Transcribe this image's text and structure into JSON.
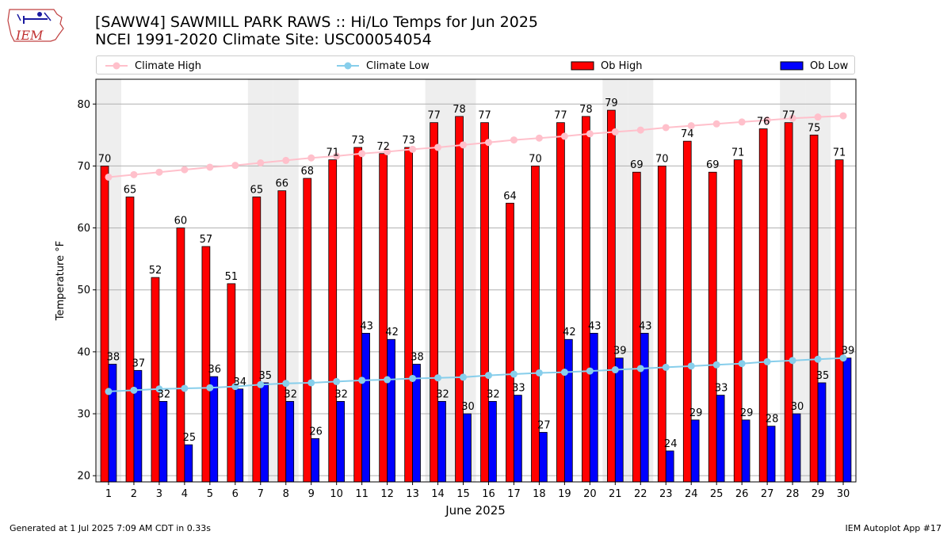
{
  "header": {
    "title_line1": "[SAWW4] SAWMILL PARK RAWS :: Hi/Lo Temps for Jun 2025",
    "title_line2": "NCEI 1991-2020 Climate Site: USC00054054",
    "logo_text": "IEM",
    "logo_icon": "iowa-weather-station-logo"
  },
  "legend": {
    "climate_high": "Climate High",
    "climate_low": "Climate Low",
    "ob_high": "Ob High",
    "ob_low": "Ob Low"
  },
  "footer": {
    "generated": "Generated at 1 Jul 2025 7:09 AM CDT in 0.33s",
    "app": "IEM Autoplot App #17"
  },
  "colors": {
    "ob_high": "#ff0000",
    "ob_low": "#0000ff",
    "climate_high": "#ffc0cb",
    "climate_low": "#87ceeb",
    "weekend_band": "#eeeeee",
    "grid": "#b0b0b0"
  },
  "chart_data": {
    "type": "bar",
    "xlabel": "June 2025",
    "ylabel": "Temperature °F",
    "ylim": [
      19,
      84
    ],
    "yticks": [
      20,
      30,
      40,
      50,
      60,
      70,
      80
    ],
    "grid": "horizontal",
    "legend_position": "top",
    "categories": [
      "1",
      "2",
      "3",
      "4",
      "5",
      "6",
      "7",
      "8",
      "9",
      "10",
      "11",
      "12",
      "13",
      "14",
      "15",
      "16",
      "17",
      "18",
      "19",
      "20",
      "21",
      "22",
      "23",
      "24",
      "25",
      "26",
      "27",
      "28",
      "29",
      "30"
    ],
    "shaded_days": [
      1,
      7,
      8,
      14,
      15,
      21,
      22,
      28,
      29
    ],
    "series": [
      {
        "name": "Ob High",
        "kind": "bar",
        "values": [
          70,
          65,
          52,
          60,
          57,
          51,
          65,
          66,
          68,
          71,
          73,
          72,
          73,
          77,
          78,
          77,
          64,
          70,
          77,
          78,
          79,
          69,
          70,
          74,
          69,
          71,
          76,
          77,
          75,
          71
        ]
      },
      {
        "name": "Ob Low",
        "kind": "bar",
        "values": [
          38,
          37,
          32,
          25,
          36,
          34,
          35,
          32,
          26,
          32,
          43,
          42,
          38,
          32,
          30,
          32,
          33,
          27,
          42,
          43,
          39,
          43,
          24,
          29,
          33,
          29,
          28,
          30,
          35,
          39
        ]
      },
      {
        "name": "Climate High",
        "kind": "line",
        "values": [
          68.2,
          68.6,
          69.0,
          69.4,
          69.8,
          70.1,
          70.5,
          70.9,
          71.3,
          71.6,
          72.0,
          72.3,
          72.7,
          73.0,
          73.4,
          73.8,
          74.2,
          74.5,
          74.8,
          75.2,
          75.5,
          75.8,
          76.2,
          76.5,
          76.8,
          77.1,
          77.4,
          77.7,
          77.9,
          78.1
        ]
      },
      {
        "name": "Climate Low",
        "kind": "line",
        "values": [
          33.6,
          33.8,
          34.0,
          34.1,
          34.2,
          34.4,
          34.7,
          34.9,
          35.0,
          35.2,
          35.4,
          35.5,
          35.7,
          35.8,
          35.9,
          36.2,
          36.4,
          36.6,
          36.7,
          36.9,
          37.1,
          37.3,
          37.5,
          37.7,
          37.9,
          38.1,
          38.4,
          38.6,
          38.8,
          39.0
        ]
      }
    ]
  }
}
